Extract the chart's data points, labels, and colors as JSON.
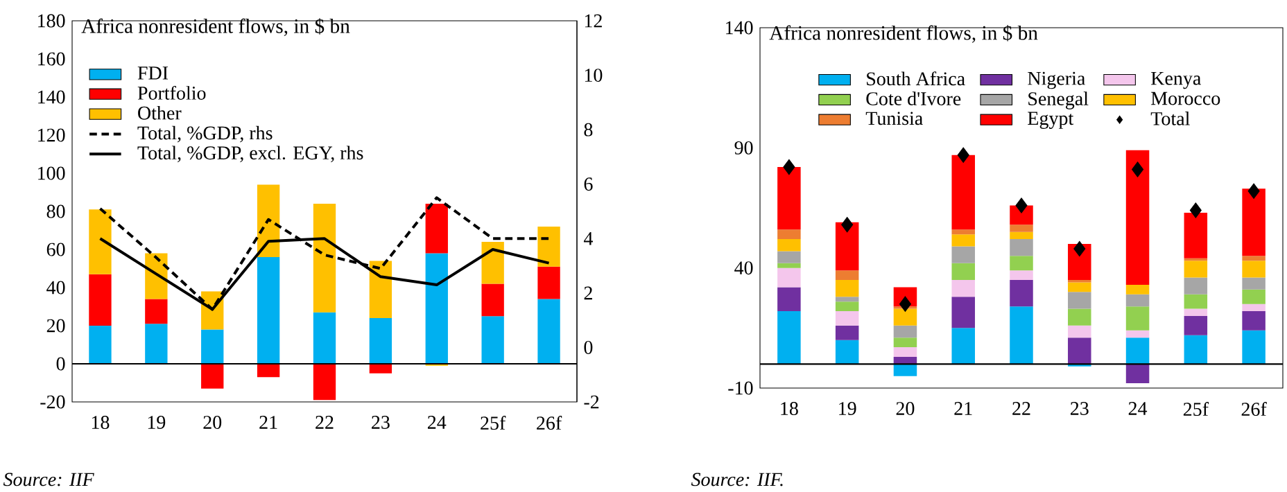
{
  "chart_data": [
    {
      "type": "bar",
      "title": "Africa nonresident flows, in $ bn",
      "categories": [
        "18",
        "19",
        "20",
        "21",
        "22",
        "23",
        "24",
        "25f",
        "26f"
      ],
      "stacked": true,
      "series": [
        {
          "name": "FDI",
          "color": "#00b0f0",
          "values": [
            20,
            21,
            18,
            56,
            27,
            24,
            58,
            25,
            34
          ]
        },
        {
          "name": "Portfolio",
          "color": "#ff0000",
          "values": [
            27,
            13,
            -13,
            -7,
            -19,
            -5,
            26,
            17,
            17
          ]
        },
        {
          "name": "Other",
          "color": "#ffc000",
          "values": [
            34,
            24,
            20,
            38,
            57,
            30,
            -1,
            22,
            21
          ]
        },
        {
          "name": "Total, %GDP, rhs",
          "type": "line",
          "axis": "y2",
          "line_style": "dashed",
          "color": "#000000",
          "values": [
            5.1,
            3.3,
            1.4,
            4.7,
            3.4,
            2.9,
            5.5,
            4.0,
            4.0
          ]
        },
        {
          "name": "Total, %GDP, excl. EGY, rhs",
          "type": "line",
          "axis": "y2",
          "line_style": "solid",
          "color": "#000000",
          "values": [
            4.0,
            2.7,
            1.4,
            3.9,
            4.0,
            2.6,
            2.3,
            3.6,
            3.1
          ]
        }
      ],
      "ylim": [
        -20,
        180
      ],
      "yticks": [
        -20,
        0,
        20,
        40,
        60,
        80,
        100,
        120,
        140,
        160,
        180
      ],
      "y2lim": [
        -2,
        12
      ],
      "y2ticks": [
        -2,
        0,
        2,
        4,
        6,
        8,
        10,
        12
      ],
      "legend": "top left",
      "annotations": [
        "Source: IIF"
      ]
    },
    {
      "type": "bar",
      "title": "Africa nonresident flows, in $ bn",
      "categories": [
        "18",
        "19",
        "20",
        "21",
        "22",
        "23",
        "24",
        "25f",
        "26f"
      ],
      "stacked": true,
      "series": [
        {
          "name": "South Africa",
          "color": "#00b0f0",
          "values": [
            22,
            10,
            -5,
            15,
            24,
            -1,
            11,
            12,
            14
          ]
        },
        {
          "name": "Nigeria",
          "color": "#7030a0",
          "values": [
            10,
            6,
            3,
            13,
            11,
            11,
            -8,
            8,
            8
          ]
        },
        {
          "name": "Kenya",
          "color": "#f4c6ec",
          "values": [
            8,
            6,
            4,
            7,
            4,
            5,
            3,
            3,
            3
          ]
        },
        {
          "name": "Cote d'Ivore",
          "color": "#92d050",
          "values": [
            2,
            4,
            4,
            7,
            6,
            7,
            10,
            6,
            6
          ]
        },
        {
          "name": "Senegal",
          "color": "#a6a6a6",
          "values": [
            5,
            2,
            5,
            7,
            7,
            7,
            5,
            7,
            5
          ]
        },
        {
          "name": "Morocco",
          "color": "#ffc000",
          "values": [
            5,
            7,
            7,
            5,
            3,
            4,
            4,
            7,
            7
          ]
        },
        {
          "name": "Tunisia",
          "color": "#ed7d31",
          "values": [
            4,
            4,
            1,
            2,
            3,
            1,
            0,
            1,
            2
          ]
        },
        {
          "name": "Egypt",
          "color": "#ff0000",
          "values": [
            26,
            20,
            8,
            31,
            8,
            15,
            56,
            19,
            28
          ]
        },
        {
          "name": "Total",
          "type": "scatter",
          "marker": "diamond",
          "color": "#000000",
          "values": [
            82,
            58,
            25,
            87,
            66,
            48,
            81,
            64,
            72
          ]
        }
      ],
      "ylim": [
        -10,
        140
      ],
      "yticks": [
        -10,
        40,
        90,
        140
      ],
      "legend": "top",
      "annotations": [
        "Source: IIF."
      ]
    }
  ]
}
